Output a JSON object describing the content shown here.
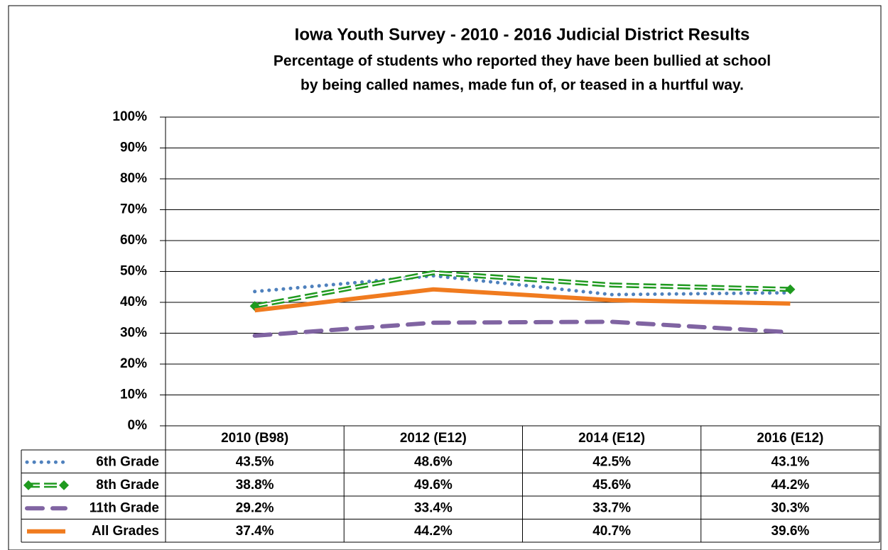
{
  "chart_data": {
    "type": "line",
    "title": "Iowa Youth Survey - 2010 - 2016 Judicial District Results",
    "subtitle": [
      "Percentage of students who reported they have been bullied at school",
      "by being called names, made fun of, or teased in a hurtful way."
    ],
    "categories": [
      "2010 (B98)",
      "2012 (E12)",
      "2014 (E12)",
      "2016 (E12)"
    ],
    "series": [
      {
        "name": "6th Grade",
        "color": "#4f81bd",
        "style": "dotted",
        "values": [
          43.5,
          48.6,
          42.5,
          43.1
        ],
        "value_labels": [
          "43.5%",
          "48.6%",
          "42.5%",
          "43.1%"
        ]
      },
      {
        "name": "8th Grade",
        "color": "#1f9a1f",
        "style": "double-dashed",
        "values": [
          38.8,
          49.6,
          45.6,
          44.2
        ],
        "value_labels": [
          "38.8%",
          "49.6%",
          "45.6%",
          "44.2%"
        ]
      },
      {
        "name": "11th Grade",
        "color": "#8064a2",
        "style": "dashed",
        "values": [
          29.2,
          33.4,
          33.7,
          30.3
        ],
        "value_labels": [
          "29.2%",
          "33.4%",
          "33.7%",
          "30.3%"
        ]
      },
      {
        "name": "All Grades",
        "color": "#f07b1f",
        "style": "solid",
        "values": [
          37.4,
          44.2,
          40.7,
          39.6
        ],
        "value_labels": [
          "37.4%",
          "44.2%",
          "40.7%",
          "39.6%"
        ]
      }
    ],
    "ylim": [
      0,
      100
    ],
    "yticks": [
      {
        "value": 0,
        "label": "0%"
      },
      {
        "value": 10,
        "label": "10%"
      },
      {
        "value": 20,
        "label": "20%"
      },
      {
        "value": 30,
        "label": "30%"
      },
      {
        "value": 40,
        "label": "40%"
      },
      {
        "value": 50,
        "label": "50%"
      },
      {
        "value": 60,
        "label": "60%"
      },
      {
        "value": 70,
        "label": "70%"
      },
      {
        "value": 80,
        "label": "80%"
      },
      {
        "value": 90,
        "label": "90%"
      },
      {
        "value": 100,
        "label": "100%"
      }
    ],
    "grid": true
  }
}
